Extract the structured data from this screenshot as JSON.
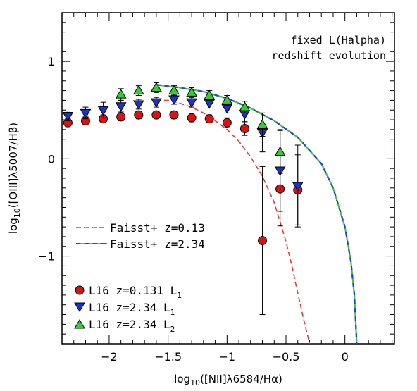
{
  "chart_data": {
    "type": "scatter",
    "xlabel": {
      "pre": "log",
      "sub": "10",
      "post": "([NII]λ6584/Hα)"
    },
    "ylabel": {
      "pre": "log",
      "sub": "10",
      "post": "([OIII]λ5007/Hβ)"
    },
    "xlim": [
      -2.4,
      0.42
    ],
    "ylim": [
      -1.9,
      1.5
    ],
    "x_ticks": [
      -2,
      -1.5,
      -1,
      -0.5,
      0
    ],
    "x_tick_labels": [
      "−2",
      "−1.5",
      "−1",
      "−0.5",
      "0"
    ],
    "y_ticks": [
      -1,
      0,
      1
    ],
    "y_tick_labels": [
      "−1",
      "0",
      "1"
    ],
    "annotations": [
      "fixed L(Halpha)",
      "redshift evolution"
    ],
    "legend_placement": "lower-left",
    "lines": [
      {
        "name": "Faisst+ z=0.13",
        "color": "#ff3333",
        "style": "dashed",
        "x": [
          -1.6,
          -1.5,
          -1.4,
          -1.3,
          -1.2,
          -1.1,
          -1.0,
          -0.9,
          -0.8,
          -0.7,
          -0.6,
          -0.5,
          -0.45,
          -0.4,
          -0.35,
          -0.3
        ],
        "y": [
          0.6,
          0.6,
          0.57,
          0.53,
          0.47,
          0.39,
          0.3,
          0.18,
          0.02,
          -0.18,
          -0.45,
          -0.85,
          -1.1,
          -1.38,
          -1.65,
          -1.9
        ]
      },
      {
        "name": "Faisst+ z=2.34",
        "colors": [
          "#33cc33",
          "#3333ff"
        ],
        "style": "dashed-two-tone",
        "x": [
          -1.6,
          -1.4,
          -1.2,
          -1.0,
          -0.8,
          -0.6,
          -0.4,
          -0.2,
          -0.1,
          0.0,
          0.05,
          0.08,
          0.1
        ],
        "y": [
          0.76,
          0.73,
          0.69,
          0.62,
          0.52,
          0.39,
          0.22,
          -0.05,
          -0.3,
          -0.7,
          -1.05,
          -1.4,
          -1.9
        ]
      }
    ],
    "series": [
      {
        "name": "L16 z=0.131 L",
        "sub": "1",
        "marker": "circle",
        "color": "#dd1111",
        "x": [
          -2.35,
          -2.2,
          -2.05,
          -1.9,
          -1.75,
          -1.6,
          -1.45,
          -1.3,
          -1.15,
          -1.0,
          -0.85,
          -0.7,
          -0.55,
          -0.4
        ],
        "y": [
          0.37,
          0.39,
          0.41,
          0.43,
          0.45,
          0.45,
          0.45,
          0.42,
          0.41,
          0.37,
          0.31,
          -0.84,
          -0.31,
          -0.32
        ],
        "err": [
          0.04,
          0.04,
          0.04,
          0.04,
          0.04,
          0.04,
          0.04,
          0.04,
          0.04,
          0.05,
          0.07,
          0.76,
          0.38,
          0.36
        ]
      },
      {
        "name": "L16 z=2.34 L",
        "sub": "1",
        "marker": "triangle-down",
        "color": "#1a33cc",
        "x": [
          -2.35,
          -2.2,
          -2.05,
          -1.9,
          -1.75,
          -1.6,
          -1.45,
          -1.3,
          -1.15,
          -1.0,
          -0.85,
          -0.7,
          -0.55,
          -0.4
        ],
        "y": [
          0.44,
          0.47,
          0.5,
          0.54,
          0.56,
          0.58,
          0.61,
          0.58,
          0.57,
          0.52,
          0.46,
          0.27,
          -0.12,
          -0.28
        ],
        "err": [
          0.05,
          0.06,
          0.08,
          0.06,
          0.05,
          0.05,
          0.05,
          0.05,
          0.05,
          0.05,
          0.08,
          0.2,
          0.42,
          0.42
        ]
      },
      {
        "name": "L16 z=2.34 L",
        "sub": "2",
        "marker": "triangle-up",
        "color": "#33cc33",
        "x": [
          -1.9,
          -1.75,
          -1.6,
          -1.45,
          -1.3,
          -1.15,
          -1.0,
          -0.85,
          -0.7,
          -0.55
        ],
        "y": [
          0.66,
          0.7,
          0.73,
          0.7,
          0.68,
          0.65,
          0.6,
          0.53,
          0.35,
          0.07
        ],
        "err": [
          0.06,
          0.05,
          0.05,
          0.05,
          0.05,
          0.05,
          0.05,
          0.06,
          0.12,
          0.22
        ]
      }
    ]
  }
}
